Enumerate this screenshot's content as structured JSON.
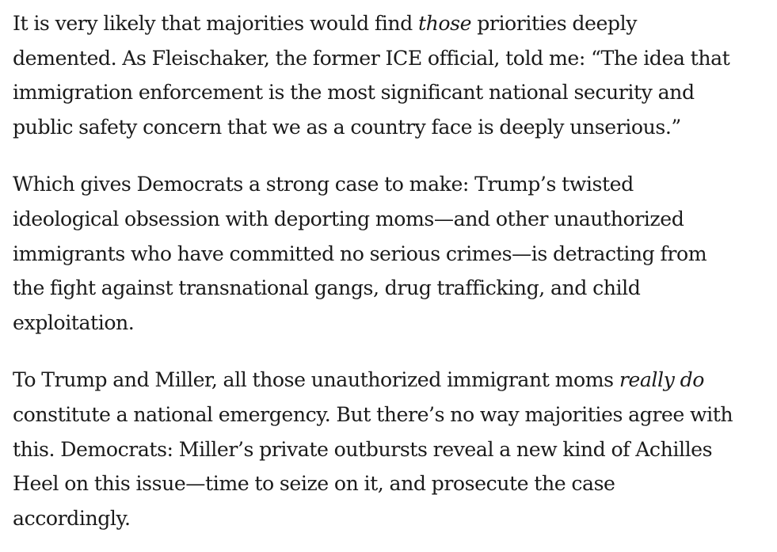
{
  "article": {
    "paragraphs": [
      {
        "lines": [
          [
            "It is very likely that majorities would find ",
            {
              "em": "those"
            },
            " priorities deeply"
          ],
          [
            "demented. As Fleischaker, the former ICE official, told me: “The idea that"
          ],
          [
            "immigration enforcement is the most significant national security and"
          ],
          [
            "public safety concern that we as a country face is deeply unserious.”"
          ]
        ]
      },
      {
        "lines": [
          [
            "Which gives Democrats a strong case to make: Trump’s twisted"
          ],
          [
            "ideological obsession with deporting moms—and other unauthorized"
          ],
          [
            "immigrants who have committed no serious crimes—is detracting from"
          ],
          [
            "the fight against transnational gangs, drug trafficking, and child"
          ],
          [
            "exploitation."
          ]
        ]
      },
      {
        "lines": [
          [
            "To Trump and Miller, all those unauthorized immigrant moms ",
            {
              "em": "really do"
            }
          ],
          [
            "constitute a national emergency. But there’s no way majorities agree with"
          ],
          [
            "this. Democrats: Miller’s private outbursts reveal a new kind of Achilles"
          ],
          [
            "Heel on this issue—time to seize on it, and prosecute the case"
          ],
          [
            "accordingly."
          ]
        ]
      }
    ]
  }
}
